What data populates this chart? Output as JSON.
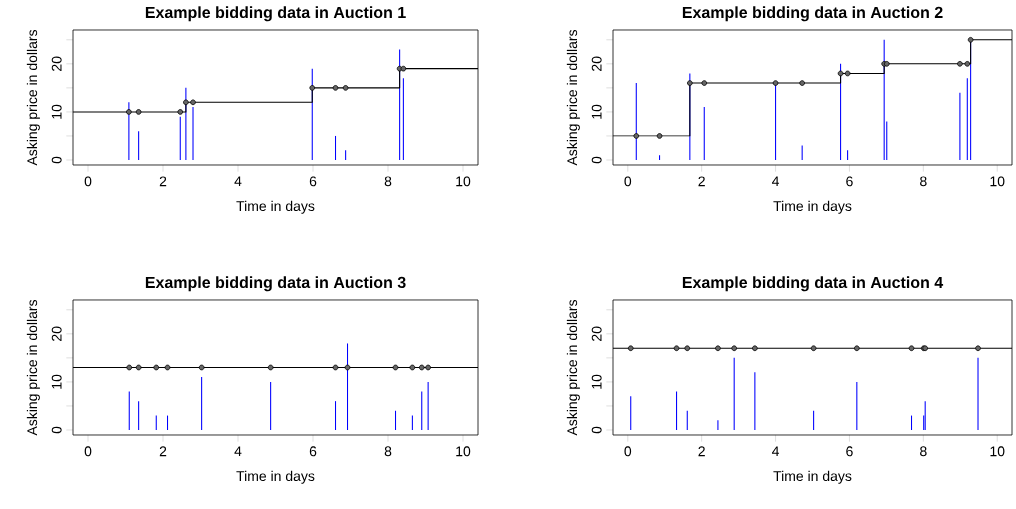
{
  "chart_data": [
    {
      "type": "bar",
      "title": "Example bidding data in Auction 1",
      "xlabel": "Time in days",
      "ylabel": "Asking price in dollars",
      "xlim": [
        -0.4,
        10.4
      ],
      "ylim": [
        -1.04,
        27.04
      ],
      "xticks": [
        0,
        2,
        4,
        6,
        8,
        10
      ],
      "yticks": [
        0,
        {
          "value": 5,
          "label": null
        },
        10,
        {
          "value": 15,
          "label": null
        },
        20,
        {
          "value": 25,
          "label": null
        }
      ],
      "series": [
        {
          "color": "#0000ff",
          "x": [
            1.09,
            1.35,
            2.46,
            2.61,
            2.8,
            5.98,
            6.6,
            6.87,
            8.31,
            8.41
          ],
          "values": [
            12,
            6,
            9,
            15,
            11,
            19,
            5,
            2,
            23,
            17
          ]
        },
        {
          "type": "step",
          "color": "#000000",
          "x": [
            -0.4,
            2.61,
            5.98,
            8.31,
            10.4
          ],
          "values": [
            10,
            12,
            15,
            19,
            19
          ]
        },
        {
          "type": "scatter",
          "color": "#000000",
          "x": [
            1.09,
            1.35,
            2.46,
            2.61,
            2.8,
            5.98,
            6.6,
            6.87,
            8.31,
            8.41
          ],
          "values": [
            10,
            10,
            10,
            12,
            12,
            15,
            15,
            15,
            19,
            19
          ]
        }
      ]
    },
    {
      "type": "bar",
      "title": "Example bidding data in Auction 2",
      "xlabel": "Time in days",
      "ylabel": "Asking price in dollars",
      "xlim": [
        -0.4,
        10.4
      ],
      "ylim": [
        -1.04,
        27.04
      ],
      "xticks": [
        0,
        2,
        4,
        6,
        8,
        10
      ],
      "yticks": [
        0,
        {
          "value": 5,
          "label": null
        },
        10,
        {
          "value": 15,
          "label": null
        },
        20,
        {
          "value": 25,
          "label": null
        }
      ],
      "series": [
        {
          "color": "#0000ff",
          "x": [
            0.23,
            0.86,
            1.68,
            2.07,
            4.0,
            4.72,
            5.76,
            5.95,
            6.94,
            7.01,
            8.99,
            9.19,
            9.28
          ],
          "values": [
            16,
            1,
            18,
            11,
            16,
            3,
            20,
            2,
            25,
            8,
            14,
            17,
            25
          ]
        },
        {
          "type": "step",
          "color": "#000000",
          "x": [
            -0.4,
            1.68,
            5.76,
            6.94,
            9.28,
            10.4
          ],
          "values": [
            5,
            16,
            18,
            20,
            25,
            25
          ]
        },
        {
          "type": "scatter",
          "color": "#000000",
          "x": [
            0.23,
            0.86,
            1.68,
            2.07,
            4.0,
            4.72,
            5.76,
            5.95,
            6.94,
            7.01,
            8.99,
            9.19,
            9.28
          ],
          "values": [
            5,
            5,
            16,
            16,
            16,
            16,
            18,
            18,
            20,
            20,
            20,
            20,
            25
          ]
        }
      ]
    },
    {
      "type": "bar",
      "title": "Example bidding data in Auction 3",
      "xlabel": "Time in days",
      "ylabel": "Asking price in dollars",
      "xlim": [
        -0.4,
        10.4
      ],
      "ylim": [
        -1.04,
        27.04
      ],
      "xticks": [
        0,
        2,
        4,
        6,
        8,
        10
      ],
      "yticks": [
        0,
        {
          "value": 5,
          "label": null
        },
        10,
        {
          "value": 15,
          "label": null
        },
        20,
        {
          "value": 25,
          "label": null
        }
      ],
      "series": [
        {
          "color": "#0000ff",
          "x": [
            1.1,
            1.35,
            1.82,
            2.12,
            3.03,
            4.87,
            6.6,
            6.92,
            8.2,
            8.65,
            8.9,
            9.07
          ],
          "values": [
            8,
            6,
            3,
            3,
            11,
            10,
            6,
            18,
            4,
            3,
            8,
            10
          ]
        },
        {
          "type": "step",
          "color": "#000000",
          "x": [
            -0.4,
            10.4
          ],
          "values": [
            13,
            13
          ]
        },
        {
          "type": "scatter",
          "color": "#000000",
          "x": [
            1.1,
            1.35,
            1.82,
            2.12,
            3.03,
            4.87,
            6.6,
            6.92,
            8.2,
            8.65,
            8.9,
            9.07
          ],
          "values": [
            13,
            13,
            13,
            13,
            13,
            13,
            13,
            13,
            13,
            13,
            13,
            13
          ]
        }
      ]
    },
    {
      "type": "bar",
      "title": "Example bidding data in Auction 4",
      "xlabel": "Time in days",
      "ylabel": "Asking price in dollars",
      "xlim": [
        -0.4,
        10.4
      ],
      "ylim": [
        -1.04,
        27.04
      ],
      "xticks": [
        0,
        2,
        4,
        6,
        8,
        10
      ],
      "yticks": [
        0,
        {
          "value": 5,
          "label": null
        },
        10,
        {
          "value": 15,
          "label": null
        },
        20,
        {
          "value": 25,
          "label": null
        }
      ],
      "series": [
        {
          "color": "#0000ff",
          "x": [
            0.08,
            1.32,
            1.61,
            2.44,
            2.88,
            3.44,
            5.03,
            6.2,
            7.68,
            8.01,
            8.05,
            9.48
          ],
          "values": [
            7,
            8,
            4,
            2,
            15,
            12,
            4,
            10,
            3,
            3,
            6,
            15
          ]
        },
        {
          "type": "step",
          "color": "#000000",
          "x": [
            -0.4,
            10.4
          ],
          "values": [
            17,
            17
          ]
        },
        {
          "type": "scatter",
          "color": "#000000",
          "x": [
            0.08,
            1.32,
            1.61,
            2.44,
            2.88,
            3.44,
            5.03,
            6.2,
            7.68,
            8.01,
            8.05,
            9.48
          ],
          "values": [
            17,
            17,
            17,
            17,
            17,
            17,
            17,
            17,
            17,
            17,
            17,
            17
          ]
        }
      ]
    }
  ]
}
